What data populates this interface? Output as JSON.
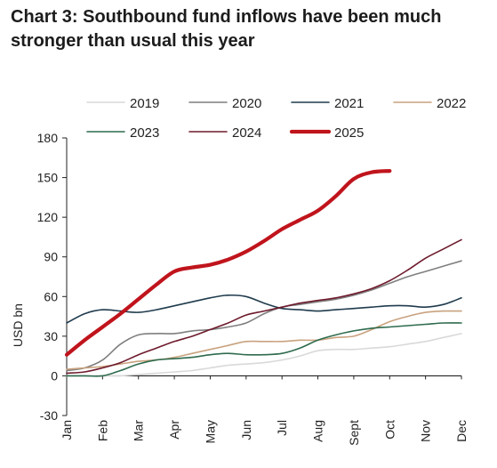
{
  "title": "Chart 3: Southbound fund inflows have been much stronger than usual this year",
  "chart_data": {
    "type": "line",
    "title": "Chart 3: Southbound fund inflows have been much stronger than usual this year",
    "ylabel": "USD bn",
    "xlabel": "",
    "ylim": [
      -30,
      180
    ],
    "yticks": [
      -30,
      0,
      30,
      60,
      90,
      120,
      150,
      180
    ],
    "xlim": [
      0,
      11
    ],
    "categories": [
      "Jan",
      "Feb",
      "Mar",
      "Apr",
      "May",
      "Jun",
      "Jul",
      "Aug",
      "Sept",
      "Oct",
      "Nov",
      "Dec"
    ],
    "legend_position": "top",
    "grid": false,
    "series": [
      {
        "name": "2019",
        "color": "#d9d9d9",
        "width": 1.6,
        "x": [
          0,
          0.5,
          1,
          1.5,
          2,
          2.5,
          3,
          3.5,
          4,
          4.5,
          5,
          5.5,
          6,
          6.5,
          7,
          7.5,
          8,
          8.5,
          9,
          9.5,
          10,
          10.5,
          11
        ],
        "y": [
          0,
          0,
          0,
          0,
          1,
          2,
          3,
          4,
          6,
          8,
          9,
          10,
          12,
          15,
          19,
          20,
          20,
          21,
          22,
          24,
          26,
          29,
          32
        ]
      },
      {
        "name": "2020",
        "color": "#7f7f7f",
        "width": 1.6,
        "x": [
          0,
          0.5,
          1,
          1.5,
          2,
          2.5,
          3,
          3.5,
          4,
          4.5,
          5,
          5.5,
          6,
          6.5,
          7,
          7.5,
          8,
          8.5,
          9,
          9.5,
          10,
          10.5,
          11
        ],
        "y": [
          4,
          6,
          12,
          24,
          31,
          32,
          32,
          34,
          35,
          37,
          40,
          47,
          52,
          54,
          56,
          58,
          61,
          65,
          70,
          75,
          79,
          83,
          87
        ]
      },
      {
        "name": "2021",
        "color": "#1f3b4d",
        "width": 1.6,
        "x": [
          0,
          0.5,
          1,
          1.5,
          2,
          2.5,
          3,
          3.5,
          4,
          4.5,
          5,
          5.5,
          6,
          6.5,
          7,
          7.5,
          8,
          8.5,
          9,
          9.5,
          10,
          10.5,
          11
        ],
        "y": [
          40,
          47,
          50,
          49,
          48,
          50,
          53,
          56,
          59,
          61,
          60,
          55,
          51,
          50,
          49,
          50,
          51,
          52,
          53,
          53,
          52,
          54,
          59
        ]
      },
      {
        "name": "2022",
        "color": "#c9a27e",
        "width": 1.6,
        "x": [
          0,
          0.5,
          1,
          1.5,
          2,
          2.5,
          3,
          3.5,
          4,
          4.5,
          5,
          5.5,
          6,
          6.5,
          7,
          7.5,
          8,
          8.5,
          9,
          9.5,
          10,
          10.5,
          11
        ],
        "y": [
          5,
          6,
          7,
          9,
          11,
          12,
          14,
          17,
          20,
          23,
          26,
          26,
          26,
          27,
          27,
          29,
          30,
          35,
          41,
          45,
          48,
          49,
          49
        ]
      },
      {
        "name": "2023",
        "color": "#2e6b4e",
        "width": 1.6,
        "x": [
          0,
          0.5,
          1,
          1.5,
          2,
          2.5,
          3,
          3.5,
          4,
          4.5,
          5,
          5.5,
          6,
          6.5,
          7,
          7.5,
          8,
          8.5,
          9,
          9.5,
          10,
          10.5,
          11
        ],
        "y": [
          0,
          0,
          0,
          4,
          9,
          12,
          13,
          14,
          16,
          17,
          16,
          16,
          17,
          21,
          27,
          31,
          34,
          36,
          37,
          38,
          39,
          40,
          40
        ]
      },
      {
        "name": "2024",
        "color": "#6e1a2c",
        "width": 1.6,
        "x": [
          0,
          0.5,
          1,
          1.5,
          2,
          2.5,
          3,
          3.5,
          4,
          4.5,
          5,
          5.5,
          6,
          6.5,
          7,
          7.5,
          8,
          8.5,
          9,
          9.5,
          10,
          10.5,
          11
        ],
        "y": [
          2,
          3,
          6,
          10,
          16,
          21,
          26,
          30,
          35,
          40,
          46,
          49,
          52,
          55,
          57,
          59,
          62,
          66,
          72,
          80,
          89,
          96,
          103
        ]
      },
      {
        "name": "2025",
        "color": "#c0141c",
        "width": 4.2,
        "x": [
          0,
          0.5,
          1,
          1.5,
          2,
          2.5,
          3,
          3.5,
          4,
          4.5,
          5,
          5.5,
          6,
          6.5,
          7,
          7.5,
          8,
          8.5,
          9
        ],
        "y": [
          16,
          27,
          37,
          47,
          58,
          69,
          79,
          82,
          84,
          88,
          94,
          102,
          111,
          118,
          125,
          136,
          149,
          154,
          155
        ]
      }
    ]
  }
}
